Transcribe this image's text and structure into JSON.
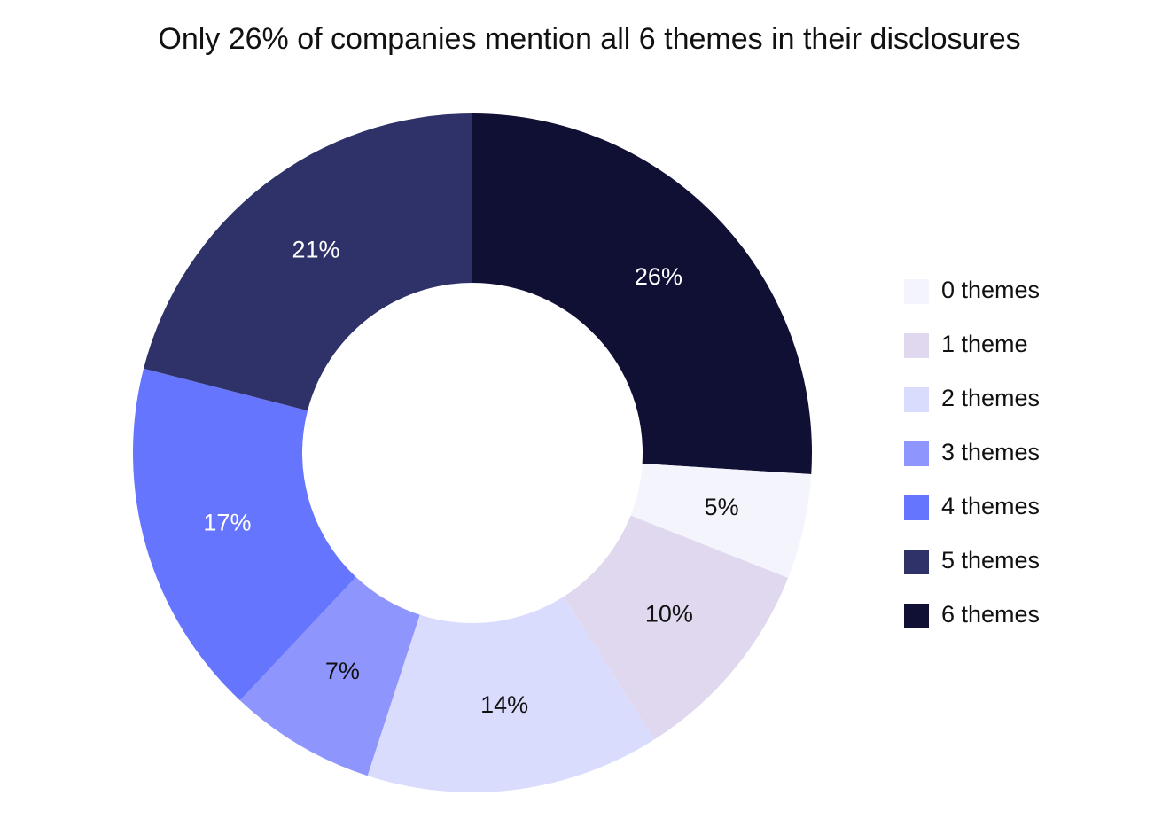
{
  "chart_data": {
    "type": "donut",
    "title": "Only 26% of companies mention all 6 themes in their disclosures",
    "categories": [
      "0 themes",
      "1 theme",
      "2 themes",
      "3 themes",
      "4 themes",
      "5 themes",
      "6 themes"
    ],
    "values": [
      5,
      10,
      14,
      7,
      17,
      21,
      26
    ],
    "value_labels": [
      "5%",
      "10%",
      "14%",
      "7%",
      "17%",
      "21%",
      "26%"
    ],
    "colors": [
      "#f4f4fd",
      "#e0d8ee",
      "#dadcfd",
      "#8e96fd",
      "#6675fe",
      "#2e3268",
      "#0f1034"
    ],
    "legend": "right"
  }
}
